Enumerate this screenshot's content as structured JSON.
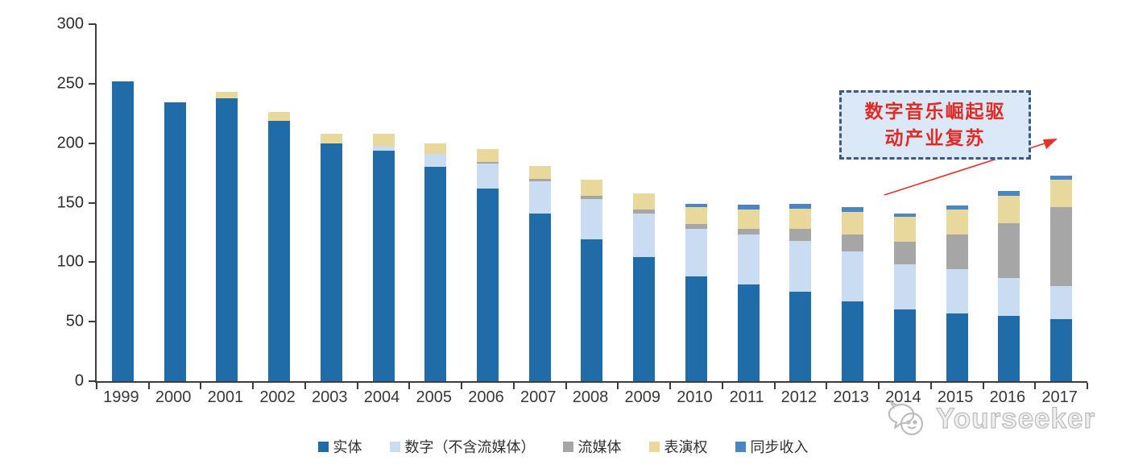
{
  "chart_data": {
    "type": "bar",
    "stacked": true,
    "title": "",
    "xlabel": "",
    "ylabel": "",
    "categories": [
      "1999",
      "2000",
      "2001",
      "2002",
      "2003",
      "2004",
      "2005",
      "2006",
      "2007",
      "2008",
      "2009",
      "2010",
      "2011",
      "2012",
      "2013",
      "2014",
      "2015",
      "2016",
      "2017"
    ],
    "series": [
      {
        "name": "实体",
        "name_en": "physical",
        "color": "#1F6CA8",
        "values": [
          252,
          234,
          238,
          219,
          200,
          194,
          180,
          162,
          141,
          119,
          104,
          88,
          81,
          75,
          67,
          60,
          57,
          55,
          52
        ]
      },
      {
        "name": "数字（不含流媒体）",
        "name_en": "digital-excl-streaming",
        "color": "#C9DCF1",
        "values": [
          0,
          0,
          0,
          0,
          0,
          4,
          11,
          21,
          27,
          34,
          37,
          40,
          42,
          43,
          42,
          38,
          37,
          32,
          28
        ]
      },
      {
        "name": "流媒体",
        "name_en": "streaming",
        "color": "#A6A6A6",
        "values": [
          0,
          0,
          0,
          0,
          0,
          0,
          0,
          1,
          2,
          3,
          3,
          4,
          5,
          10,
          14,
          19,
          29,
          46,
          66
        ]
      },
      {
        "name": "表演权",
        "name_en": "performance-rights",
        "color": "#E9D89C",
        "values": [
          0,
          0,
          5,
          7,
          8,
          10,
          9,
          11,
          11,
          13,
          14,
          14,
          16,
          17,
          19,
          21,
          21,
          23,
          23
        ]
      },
      {
        "name": "同步收入",
        "name_en": "sync-revenue",
        "color": "#4A86C4",
        "values": [
          0,
          0,
          0,
          0,
          0,
          0,
          0,
          0,
          0,
          0,
          0,
          3,
          4,
          4,
          4,
          3,
          4,
          4,
          4
        ]
      }
    ],
    "ylim": [
      0,
      300
    ],
    "yticks": [
      0,
      50,
      100,
      150,
      200,
      250,
      300
    ],
    "grid": false,
    "legend_position": "bottom",
    "axis_color": "#3d3d3d"
  },
  "annotation": {
    "lines": [
      "数字音乐崛起驱",
      "动产业复苏"
    ],
    "full_text": "数字音乐崛起驱动产业复苏",
    "box_fill": "#DBE8F7",
    "box_border_color": "#3B5B85",
    "text_color": "#E02A24",
    "arrow_color": "#E8302A"
  },
  "watermark": {
    "text": "Yourseeker",
    "color": "#BDBDBD"
  }
}
